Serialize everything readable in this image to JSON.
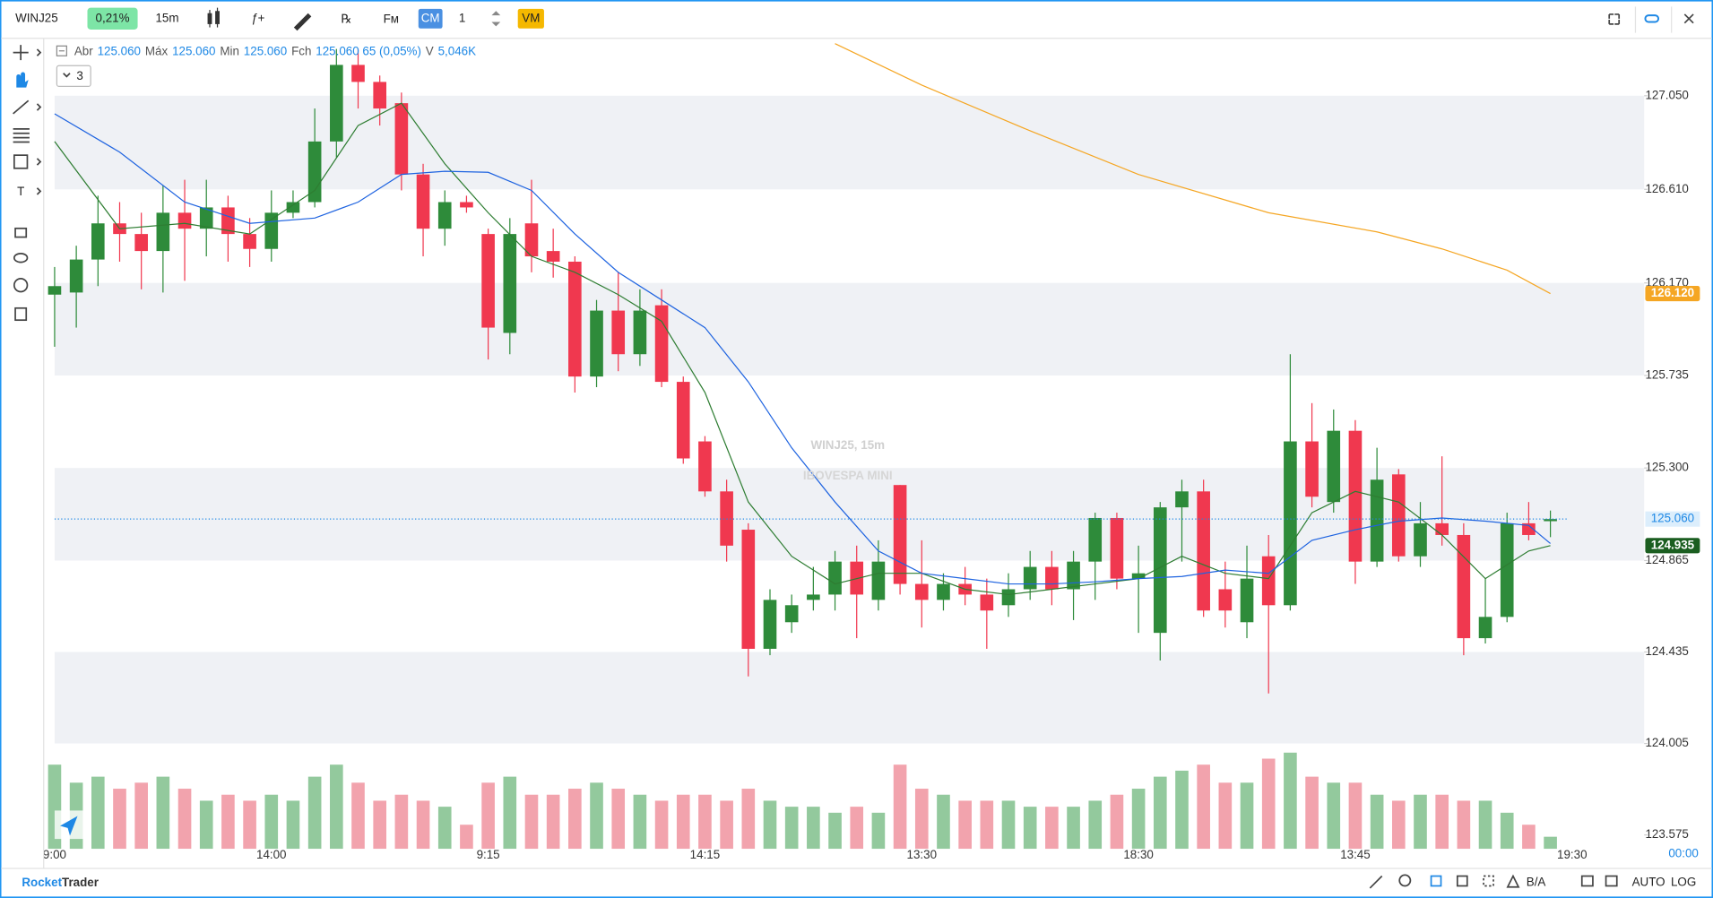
{
  "toolbar": {
    "symbol": "WINJ25",
    "change": "0,21%",
    "interval": "15m",
    "cm": "CM",
    "count": "1",
    "vm": "VM"
  },
  "footer": {
    "brand_a": "Rocket",
    "brand_b": "Trader",
    "ba": "B/A",
    "auto": "AUTO",
    "log": "LOG",
    "time": "00:00"
  },
  "chart_data": {
    "type": "candlestick",
    "title": "WINJ25, 15m",
    "subtitle": "IBOVESPA MINI",
    "collapse": "3",
    "header": [
      {
        "label": "Abr",
        "value": "125.060"
      },
      {
        "label": "Máx",
        "value": "125.060"
      },
      {
        "label": "Min",
        "value": "125.060"
      },
      {
        "label": "Fch",
        "value": "125.060 65 (0,05%)"
      },
      {
        "label": "V",
        "value": "5,046K"
      }
    ],
    "categories": [
      "9:00",
      null,
      null,
      null,
      null,
      null,
      null,
      null,
      null,
      null,
      "14:00",
      null,
      null,
      null,
      null,
      null,
      null,
      null,
      null,
      null,
      "9:15",
      null,
      null,
      null,
      null,
      null,
      null,
      null,
      null,
      null,
      "14:15",
      null,
      null,
      null,
      null,
      null,
      null,
      null,
      null,
      null,
      "13:30",
      null,
      null,
      null,
      null,
      null,
      null,
      null,
      null,
      null,
      "18:30",
      null,
      null,
      null,
      null,
      null,
      null,
      null,
      null,
      null,
      "13:45",
      null,
      null,
      null,
      null,
      null,
      null,
      null,
      null,
      null,
      "19:30"
    ],
    "open": [
      126.115,
      126.125,
      126.28,
      126.45,
      126.4,
      126.32,
      126.5,
      126.425,
      126.525,
      126.4,
      126.33,
      126.5,
      126.55,
      126.835,
      127.195,
      127.115,
      127.015,
      126.68,
      126.425,
      126.55,
      126.4,
      125.935,
      126.45,
      126.32,
      126.27,
      125.73,
      126.04,
      125.835,
      126.065,
      125.705,
      125.425,
      125.19,
      125.01,
      124.45,
      124.575,
      124.68,
      124.705,
      124.86,
      124.68,
      125.22,
      124.755,
      124.68,
      124.755,
      124.705,
      124.655,
      124.73,
      124.835,
      124.73,
      124.86,
      125.065,
      124.78,
      124.525,
      125.115,
      125.19,
      124.73,
      124.575,
      124.885,
      124.655,
      125.425,
      125.14,
      125.475,
      124.86,
      125.27,
      124.885,
      125.04,
      124.985,
      124.5,
      124.6,
      125.04,
      125.05,
      null
    ],
    "high": [
      126.245,
      126.345,
      126.58,
      126.55,
      126.5,
      126.63,
      126.655,
      126.655,
      126.58,
      126.475,
      126.605,
      126.605,
      126.99,
      127.27,
      127.27,
      127.145,
      127.065,
      126.73,
      126.605,
      126.58,
      126.425,
      126.475,
      126.655,
      126.425,
      126.295,
      126.09,
      126.22,
      126.14,
      126.14,
      125.73,
      125.45,
      125.245,
      125.04,
      124.73,
      124.705,
      124.835,
      124.91,
      124.935,
      124.96,
      125.22,
      124.96,
      124.805,
      124.835,
      124.78,
      124.805,
      124.91,
      124.91,
      124.91,
      125.09,
      125.09,
      124.935,
      125.14,
      125.245,
      125.245,
      124.86,
      124.935,
      124.985,
      125.835,
      125.605,
      125.575,
      125.525,
      125.395,
      125.295,
      125.14,
      125.355,
      125.04,
      124.78,
      125.09,
      125.14,
      125.1,
      null
    ],
    "low": [
      125.87,
      125.96,
      126.155,
      126.27,
      126.14,
      126.125,
      126.18,
      126.295,
      126.27,
      126.245,
      126.27,
      126.475,
      126.525,
      126.76,
      126.99,
      126.91,
      126.605,
      126.295,
      126.345,
      126.5,
      125.81,
      125.835,
      126.22,
      126.195,
      125.655,
      125.68,
      125.755,
      125.78,
      125.68,
      125.32,
      125.165,
      124.86,
      124.32,
      124.42,
      124.525,
      124.63,
      124.63,
      124.5,
      124.63,
      124.705,
      124.55,
      124.63,
      124.655,
      124.45,
      124.6,
      124.68,
      124.655,
      124.585,
      124.68,
      124.73,
      124.525,
      124.395,
      124.86,
      124.6,
      124.55,
      124.5,
      124.24,
      124.63,
      125.115,
      125.09,
      124.755,
      124.835,
      124.86,
      124.835,
      124.935,
      124.42,
      124.475,
      124.575,
      124.96,
      124.975,
      null
    ],
    "close": [
      126.155,
      126.28,
      126.45,
      126.4,
      126.32,
      126.5,
      126.425,
      126.525,
      126.4,
      126.33,
      126.5,
      126.55,
      126.835,
      127.195,
      127.115,
      126.99,
      126.68,
      126.425,
      126.55,
      126.525,
      125.96,
      126.4,
      126.295,
      126.27,
      125.73,
      126.04,
      125.835,
      126.04,
      125.705,
      125.345,
      125.19,
      124.935,
      124.45,
      124.68,
      124.655,
      124.705,
      124.86,
      124.705,
      124.86,
      124.755,
      124.68,
      124.755,
      124.705,
      124.63,
      124.73,
      124.835,
      124.73,
      124.86,
      125.065,
      124.78,
      124.805,
      125.115,
      125.19,
      124.63,
      124.63,
      124.78,
      124.655,
      125.425,
      125.165,
      125.475,
      124.86,
      125.245,
      124.885,
      125.04,
      124.985,
      124.5,
      124.6,
      125.04,
      124.985,
      125.06,
      null
    ],
    "volume": [
      70,
      55,
      60,
      50,
      55,
      60,
      50,
      40,
      45,
      40,
      45,
      40,
      60,
      70,
      55,
      40,
      45,
      40,
      35,
      20,
      55,
      60,
      45,
      45,
      50,
      55,
      50,
      45,
      40,
      45,
      45,
      40,
      50,
      40,
      35,
      35,
      30,
      35,
      30,
      70,
      50,
      45,
      40,
      40,
      40,
      35,
      35,
      35,
      40,
      45,
      50,
      60,
      65,
      70,
      55,
      55,
      75,
      80,
      60,
      55,
      55,
      45,
      40,
      45,
      45,
      40,
      40,
      30,
      20,
      10,
      null
    ],
    "up_color": "#2e8b3a",
    "down_color": "#f0384f",
    "up_volume_color": "#93c99d",
    "down_volume_color": "#f2a3ad",
    "overlays": [
      {
        "color": "#2e7d32",
        "x": [
          0,
          3,
          6,
          9,
          12,
          14,
          16,
          18,
          20,
          22,
          24,
          26,
          28,
          30,
          32,
          34,
          36,
          38,
          40,
          42,
          44,
          46,
          48,
          50,
          52,
          54,
          56,
          58,
          60,
          62,
          64,
          66,
          68,
          69
        ],
        "values": [
          126.835,
          126.425,
          126.45,
          126.4,
          126.605,
          126.91,
          127.015,
          126.73,
          126.5,
          126.295,
          126.22,
          126.115,
          125.99,
          125.655,
          125.14,
          124.885,
          124.755,
          124.805,
          124.805,
          124.73,
          124.705,
          124.73,
          124.755,
          124.78,
          124.885,
          124.805,
          124.78,
          125.09,
          125.19,
          125.14,
          124.985,
          124.78,
          124.91,
          124.935
        ]
      },
      {
        "color": "#1e63e0",
        "x": [
          0,
          3,
          6,
          9,
          12,
          14,
          16,
          18,
          20,
          22,
          24,
          26,
          28,
          30,
          32,
          34,
          36,
          38,
          40,
          42,
          44,
          46,
          48,
          50,
          52,
          54,
          56,
          58,
          60,
          62,
          64,
          66,
          68,
          69
        ],
        "values": [
          126.965,
          126.785,
          126.55,
          126.45,
          126.475,
          126.55,
          126.68,
          126.695,
          126.69,
          126.605,
          126.4,
          126.22,
          126.09,
          125.96,
          125.705,
          125.395,
          125.14,
          124.91,
          124.805,
          124.78,
          124.755,
          124.755,
          124.765,
          124.78,
          124.79,
          124.82,
          124.805,
          124.96,
          125.01,
          125.05,
          125.065,
          125.05,
          125.03,
          124.945
        ]
      },
      {
        "color": "#f5a623",
        "x": [
          36,
          40,
          45,
          50,
          56,
          61,
          64,
          67,
          69
        ],
        "values": [
          127.295,
          127.1,
          126.885,
          126.68,
          126.5,
          126.41,
          126.33,
          126.23,
          126.12
        ]
      }
    ],
    "price_tags": [
      {
        "value": 126.12,
        "label": "126.120",
        "color": "#f5a623"
      },
      {
        "value": 125.06,
        "label": "125.060",
        "color": "#1e88e5",
        "line": true
      },
      {
        "value": 124.935,
        "label": "124.935",
        "color": "#1b5e20"
      }
    ],
    "ylim": [
      123.51,
      127.32
    ],
    "yticks": [
      {
        "value": 127.05,
        "label": "127.050"
      },
      {
        "value": 126.61,
        "label": "126.610"
      },
      {
        "value": 126.17,
        "label": "126.170"
      },
      {
        "value": 125.735,
        "label": "125.735"
      },
      {
        "value": 125.3,
        "label": "125.300"
      },
      {
        "value": 124.865,
        "label": "124.865"
      },
      {
        "value": 124.435,
        "label": "124.435"
      },
      {
        "value": 124.005,
        "label": "124.005"
      },
      {
        "value": 123.575,
        "label": "123.575"
      }
    ],
    "bands": true
  }
}
